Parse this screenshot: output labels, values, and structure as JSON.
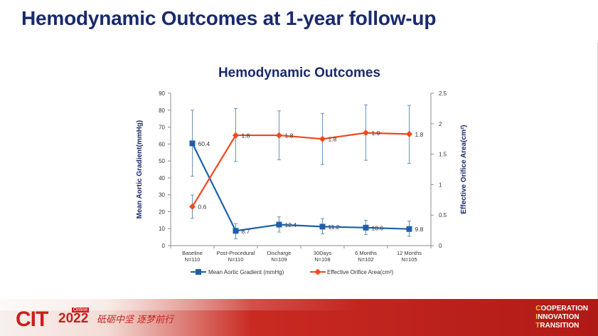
{
  "slide": {
    "title": "Hemodynamic Outcomes at 1-year follow-up"
  },
  "chart_data": {
    "type": "line",
    "title": "Hemodynamic Outcomes",
    "categories": [
      {
        "label": "Baseline",
        "n": "N=110"
      },
      {
        "label": "Post-Procedural",
        "n": "N=110"
      },
      {
        "label": "Discharge",
        "n": "N=109"
      },
      {
        "label": "30Days",
        "n": "N=108"
      },
      {
        "label": "6 Months",
        "n": "N=102"
      },
      {
        "label": "12 Months",
        "n": "N=105"
      }
    ],
    "left_axis": {
      "label": "Mean Aortic Gradient(mmHg)",
      "ylim": [
        0,
        90
      ],
      "ticks": [
        "0",
        "10",
        "20",
        "30",
        "40",
        "50",
        "60",
        "70",
        "80",
        "90"
      ]
    },
    "right_axis": {
      "label": "Effective Orifice Area(cm²)",
      "ylim": [
        0,
        2.5
      ],
      "ticks": [
        "0",
        "0.5",
        "1",
        "1.5",
        "2",
        "2.5"
      ]
    },
    "series": [
      {
        "name": "Mean Aortic Gradient (mmHg)",
        "axis": "left",
        "color": "#1f5fa8",
        "marker": "square",
        "values": [
          60.4,
          8.7,
          12.4,
          11.2,
          10.6,
          9.8
        ],
        "labels": [
          "60.4",
          "8.7",
          "12.4",
          "11.2",
          "10.6",
          "9.8"
        ],
        "error_low": [
          41,
          4,
          8,
          7,
          6.5,
          5.5
        ],
        "error_high": [
          80,
          13,
          17,
          16,
          15,
          14.5
        ]
      },
      {
        "name": "Effective Orifice Area(cm²)",
        "axis": "right",
        "color": "#f0471c",
        "marker": "diamond",
        "values": [
          0.64,
          1.81,
          1.81,
          1.75,
          1.85,
          1.83
        ],
        "labels": [
          "0.6",
          "1.8",
          "1.8",
          "1.8",
          "1.9",
          "1.8"
        ],
        "error_low": [
          0.45,
          1.38,
          1.41,
          1.33,
          1.4,
          1.35
        ],
        "error_high": [
          0.83,
          2.25,
          2.21,
          2.17,
          2.31,
          2.3
        ]
      }
    ],
    "legend_position": "bottom"
  },
  "footer": {
    "logo_main": "CIT",
    "logo_year": "2022",
    "logo_online": "Online",
    "logo_slogan": "砥砺中坚 逐梦前行",
    "tagline": [
      "COOPERATION",
      "INNOVATION",
      "TRANSITION"
    ]
  }
}
